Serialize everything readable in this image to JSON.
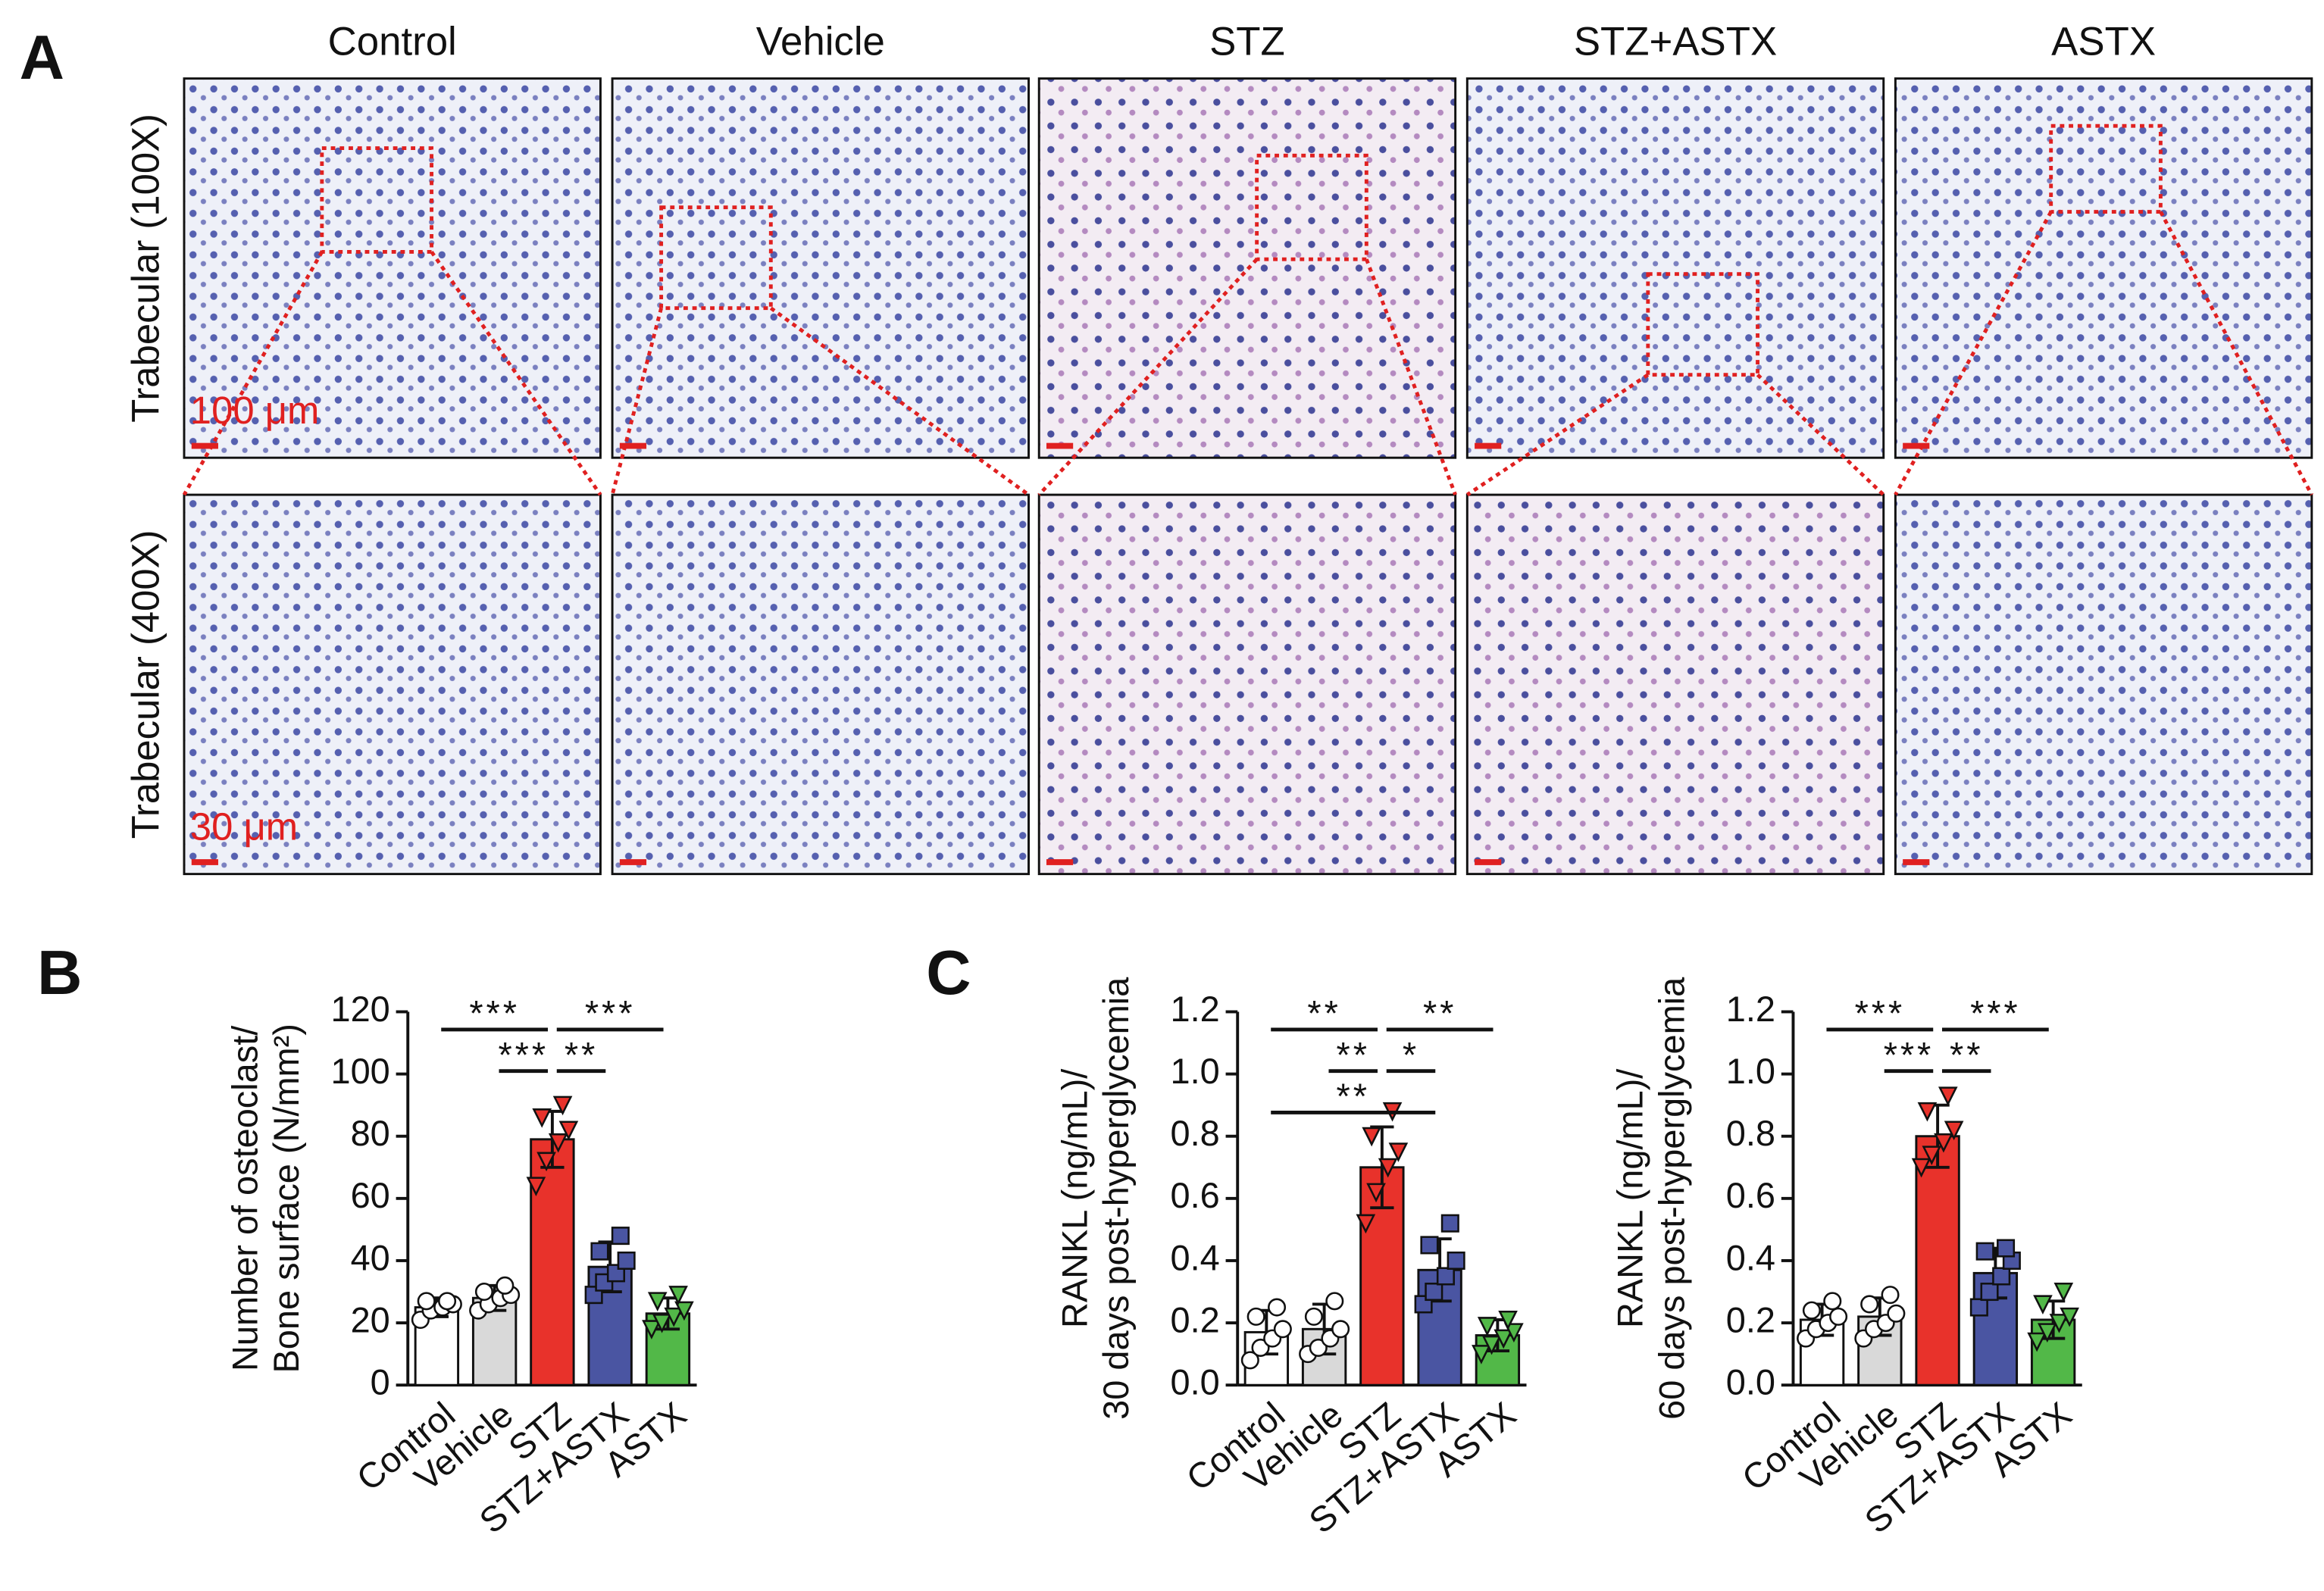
{
  "figure": {
    "panel_labels": [
      "A",
      "B",
      "C"
    ],
    "columns": [
      "Control",
      "Vehicle",
      "STZ",
      "STZ+ASTX",
      "ASTX"
    ],
    "rows": [
      "Trabecular (100X)",
      "Trabecular (400X)"
    ],
    "scale_bars": [
      "100 μm",
      "30 μm"
    ]
  },
  "chart_data": [
    {
      "type": "bar",
      "y_label": [
        "Number of osteoclast/",
        "Bone surface (N/mm²)"
      ],
      "categories": [
        "Control",
        "Vehicle",
        "STZ",
        "STZ+ASTX",
        "ASTX"
      ],
      "values": [
        25,
        28,
        79,
        38,
        23
      ],
      "errors": [
        3,
        4,
        9,
        8,
        5
      ],
      "points": [
        [
          21,
          24,
          25,
          26,
          27,
          27
        ],
        [
          24,
          26,
          28,
          29,
          30,
          32
        ],
        [
          64,
          72,
          78,
          82,
          86,
          90
        ],
        [
          29,
          33,
          36,
          40,
          43,
          48
        ],
        [
          18,
          20,
          22,
          24,
          27,
          29
        ]
      ],
      "colors": [
        "#ffffff",
        "#d9d9d9",
        "#e8322b",
        "#4a55a2",
        "#52b848"
      ],
      "markers": [
        "circle",
        "circle",
        "triangle-down",
        "square",
        "triangle-down"
      ],
      "ylim": [
        0,
        120
      ],
      "yticks": [
        0,
        20,
        40,
        60,
        80,
        100,
        120
      ],
      "comparisons": [
        {
          "label": "***",
          "between": [
            "Control",
            "STZ"
          ]
        },
        {
          "label": "***",
          "between": [
            "STZ",
            "ASTX"
          ]
        },
        {
          "label": "***",
          "between": [
            "Vehicle",
            "STZ"
          ]
        },
        {
          "label": "**",
          "between": [
            "STZ",
            "STZ+ASTX"
          ]
        }
      ]
    },
    {
      "type": "bar",
      "y_label": [
        "RANKL (ng/mL)/",
        "30 days post-hyperglycemia"
      ],
      "categories": [
        "Control",
        "Vehicle",
        "STZ",
        "STZ+ASTX",
        "ASTX"
      ],
      "values": [
        0.17,
        0.18,
        0.7,
        0.37,
        0.16
      ],
      "errors": [
        0.07,
        0.08,
        0.13,
        0.1,
        0.05
      ],
      "points": [
        [
          0.08,
          0.12,
          0.15,
          0.18,
          0.22,
          0.25
        ],
        [
          0.1,
          0.12,
          0.15,
          0.18,
          0.22,
          0.27
        ],
        [
          0.52,
          0.62,
          0.7,
          0.75,
          0.8,
          0.88
        ],
        [
          0.26,
          0.3,
          0.35,
          0.4,
          0.45,
          0.52
        ],
        [
          0.1,
          0.13,
          0.15,
          0.17,
          0.19,
          0.21
        ]
      ],
      "colors": [
        "#ffffff",
        "#d9d9d9",
        "#e8322b",
        "#4a55a2",
        "#52b848"
      ],
      "markers": [
        "circle",
        "circle",
        "triangle-down",
        "square",
        "triangle-down"
      ],
      "ylim": [
        0,
        1.2
      ],
      "yticks": [
        {
          "value": 0,
          "label": "0.0"
        },
        0.2,
        0.4,
        0.6,
        0.8,
        {
          "value": 1,
          "label": "1.0"
        },
        1.2
      ],
      "comparisons": [
        {
          "label": "**",
          "between": [
            "Control",
            "STZ"
          ]
        },
        {
          "label": "**",
          "between": [
            "STZ",
            "ASTX"
          ]
        },
        {
          "label": "**",
          "between": [
            "Vehicle",
            "STZ"
          ]
        },
        {
          "label": "*",
          "between": [
            "STZ",
            "STZ+ASTX"
          ]
        },
        {
          "label": "**",
          "between": [
            "Control",
            "STZ+ASTX"
          ]
        }
      ]
    },
    {
      "type": "bar",
      "y_label": [
        "RANKL (ng/mL)/",
        "60 days post-hyperglycemia"
      ],
      "categories": [
        "Control",
        "Vehicle",
        "STZ",
        "STZ+ASTX",
        "ASTX"
      ],
      "values": [
        0.21,
        0.22,
        0.8,
        0.36,
        0.21
      ],
      "errors": [
        0.05,
        0.06,
        0.1,
        0.08,
        0.06
      ],
      "points": [
        [
          0.15,
          0.18,
          0.2,
          0.22,
          0.24,
          0.27
        ],
        [
          0.15,
          0.18,
          0.2,
          0.23,
          0.26,
          0.29
        ],
        [
          0.7,
          0.74,
          0.78,
          0.82,
          0.88,
          0.93
        ],
        [
          0.25,
          0.3,
          0.35,
          0.4,
          0.43,
          0.44
        ],
        [
          0.14,
          0.17,
          0.2,
          0.22,
          0.26,
          0.3
        ]
      ],
      "colors": [
        "#ffffff",
        "#d9d9d9",
        "#e8322b",
        "#4a55a2",
        "#52b848"
      ],
      "markers": [
        "circle",
        "circle",
        "triangle-down",
        "square",
        "triangle-down"
      ],
      "ylim": [
        0,
        1.2
      ],
      "yticks": [
        {
          "value": 0,
          "label": "0.0"
        },
        0.2,
        0.4,
        0.6,
        0.8,
        {
          "value": 1,
          "label": "1.0"
        },
        1.2
      ],
      "comparisons": [
        {
          "label": "***",
          "between": [
            "Control",
            "STZ"
          ]
        },
        {
          "label": "***",
          "between": [
            "STZ",
            "ASTX"
          ]
        },
        {
          "label": "***",
          "between": [
            "Vehicle",
            "STZ"
          ]
        },
        {
          "label": "**",
          "between": [
            "STZ",
            "STZ+ASTX"
          ]
        }
      ]
    }
  ]
}
